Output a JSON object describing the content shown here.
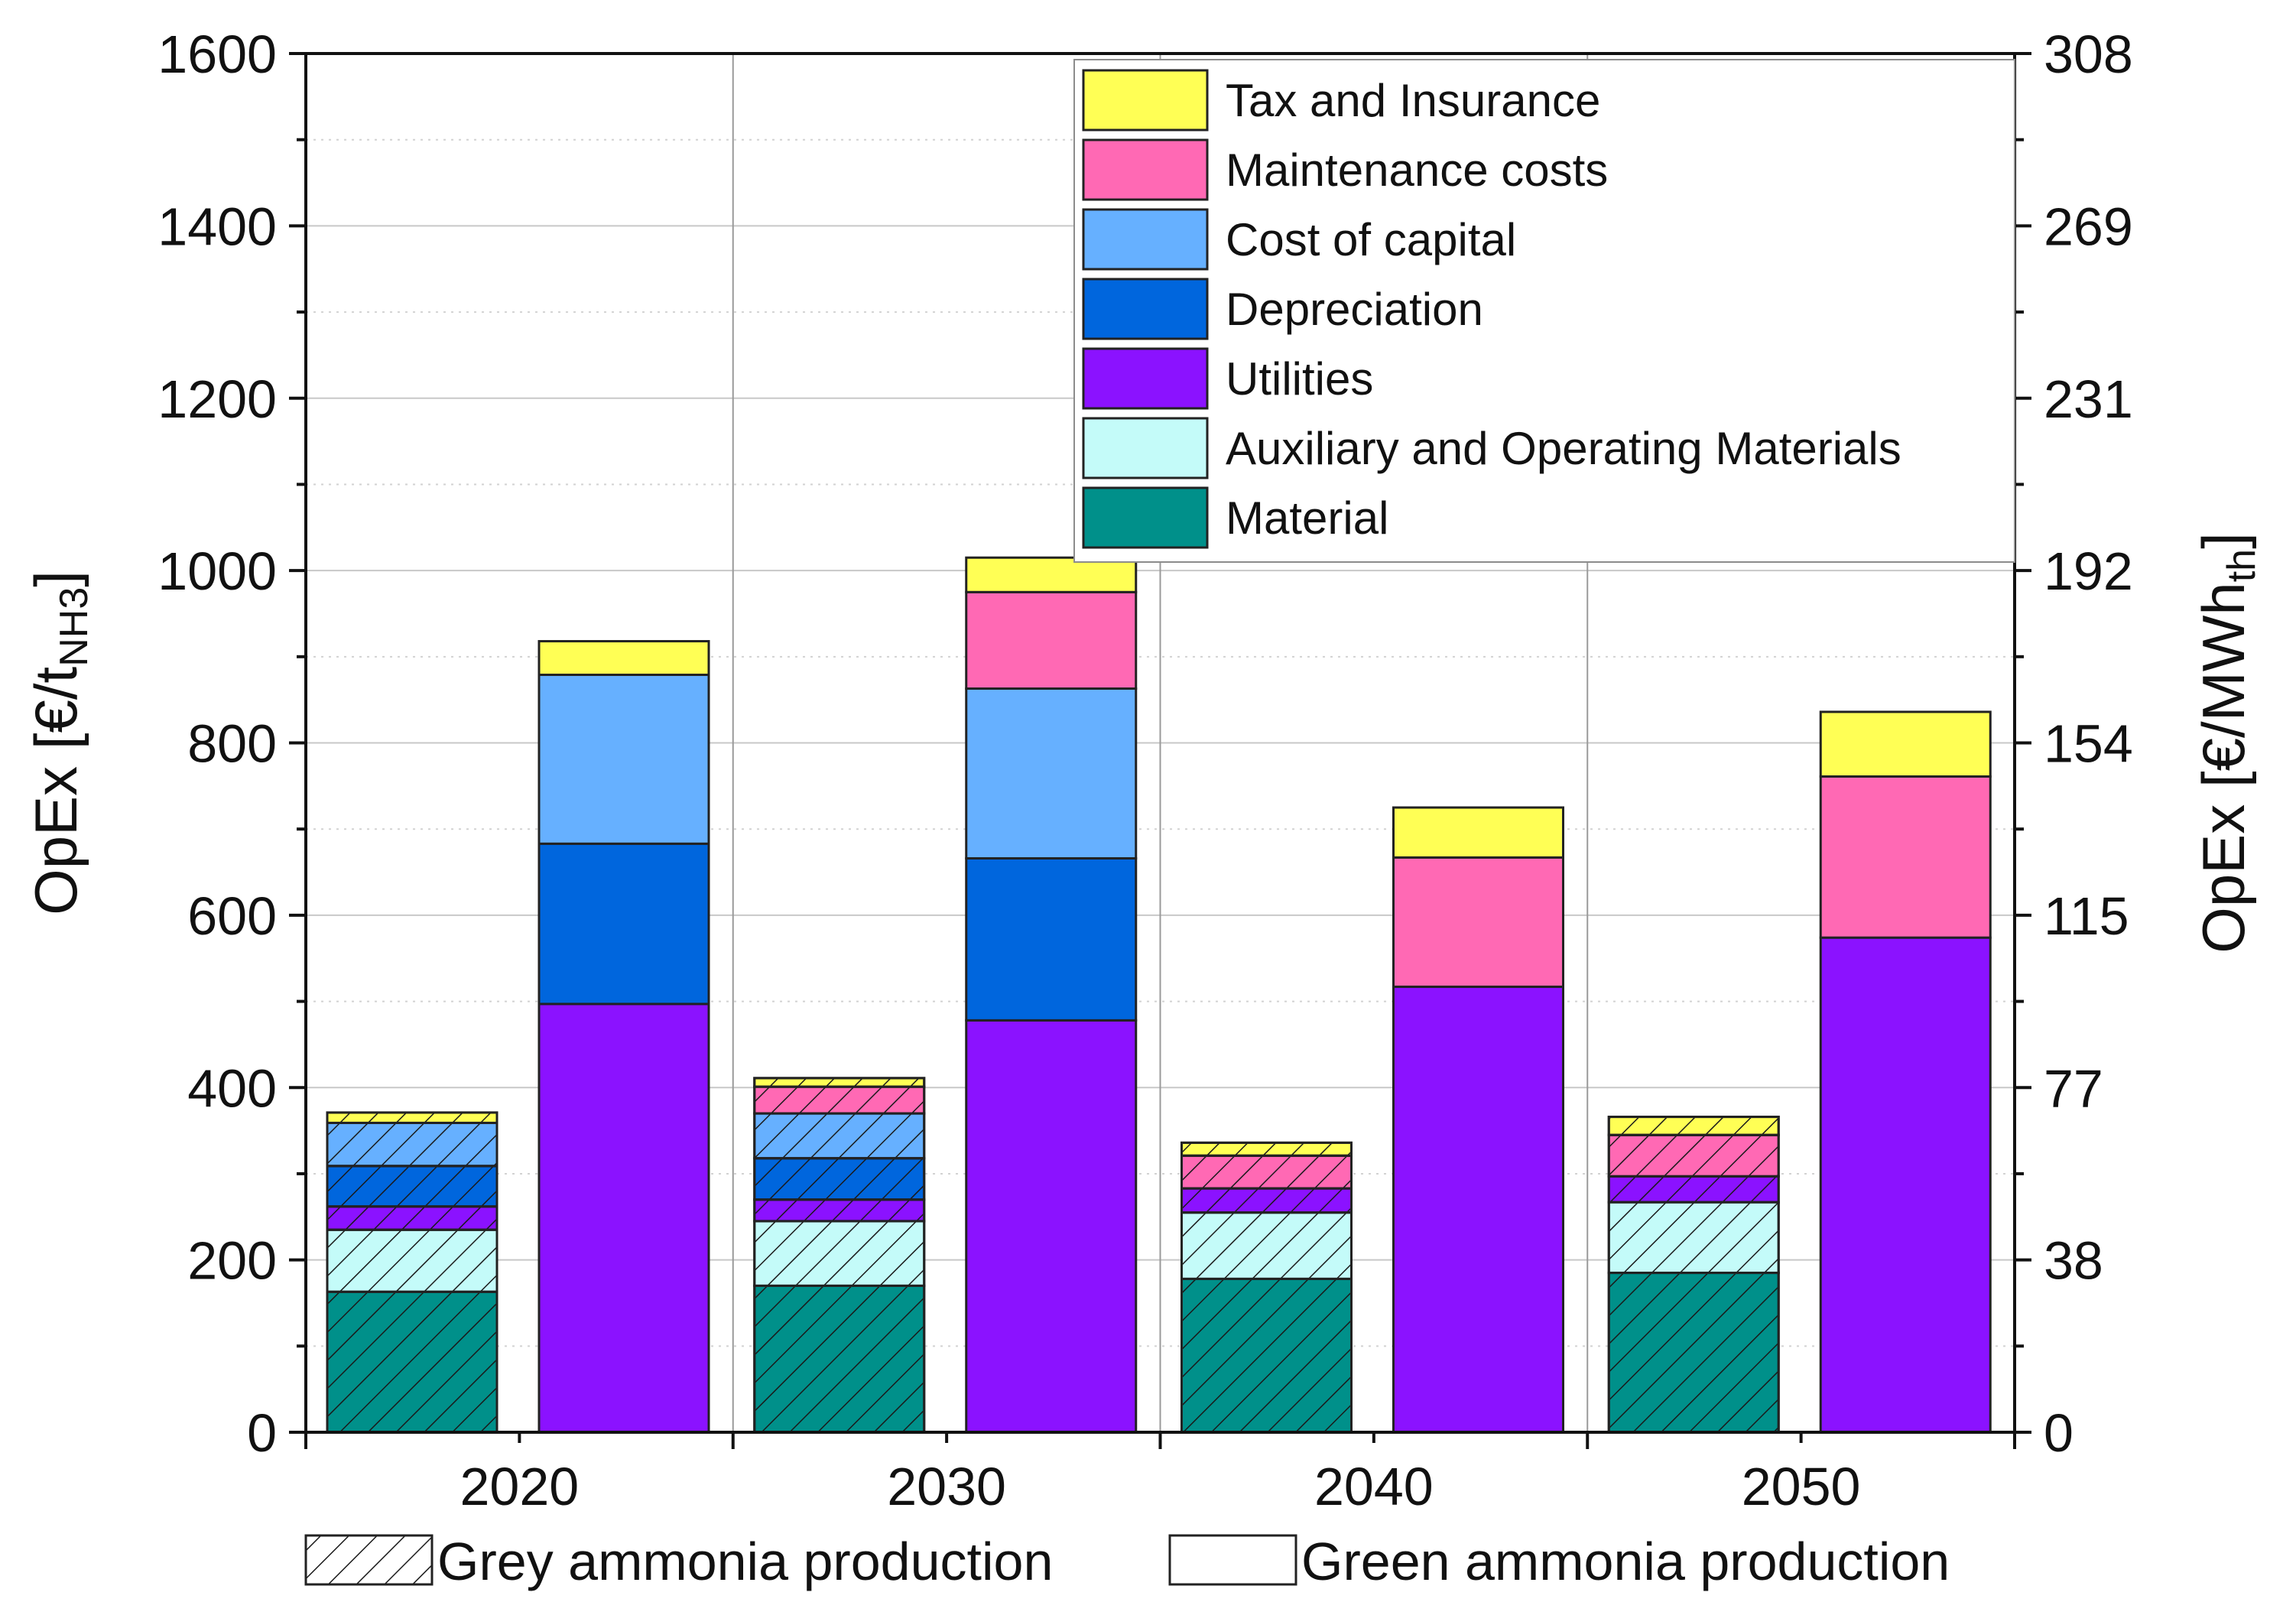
{
  "chart_data": {
    "type": "bar",
    "stacked": true,
    "categories": [
      "2020",
      "2030",
      "2040",
      "2050"
    ],
    "groups": [
      {
        "name": "Grey ammonia production",
        "pattern": "hatched"
      },
      {
        "name": "Green ammonia production",
        "pattern": "solid"
      }
    ],
    "series": [
      {
        "name": "Material",
        "color": "#00908a",
        "grey": [
          163,
          170,
          178,
          185
        ],
        "green": [
          0,
          0,
          0,
          0
        ]
      },
      {
        "name": "Auxiliary and Operating Materials",
        "color": "#c4fbf9",
        "grey": [
          72,
          75,
          77,
          82
        ],
        "green": [
          0,
          0,
          0,
          0
        ]
      },
      {
        "name": "Utilities",
        "color": "#8b12ff",
        "grey": [
          27,
          25,
          28,
          30
        ],
        "green": [
          497,
          478,
          517,
          574
        ]
      },
      {
        "name": "Depreciation",
        "color": "#0066dd",
        "grey": [
          47,
          48,
          0,
          0
        ],
        "green": [
          186,
          188,
          0,
          0
        ]
      },
      {
        "name": "Cost of capital",
        "color": "#66b0ff",
        "grey": [
          50,
          52,
          0,
          0
        ],
        "green": [
          196,
          197,
          0,
          0
        ]
      },
      {
        "name": "Maintenance costs",
        "color": "#ff69b4",
        "grey": [
          0,
          31,
          38,
          48
        ],
        "green": [
          0,
          112,
          150,
          187
        ]
      },
      {
        "name": "Tax and Insurance",
        "color": "#ffff55",
        "grey": [
          12,
          10,
          15,
          21
        ],
        "green": [
          39,
          40,
          58,
          75
        ]
      }
    ],
    "ylabel": "OpEx [€/t",
    "ylabel_sub": "NH3",
    "ylabel_end": "]",
    "ylim": [
      0,
      1600
    ],
    "yticks": [
      "0",
      "200",
      "400",
      "600",
      "800",
      "1000",
      "1200",
      "1400",
      "1600"
    ],
    "y2label": "OpEx [€/MWh",
    "y2label_sub": "th",
    "y2label_end": "]",
    "y2ticks": [
      "0",
      "38",
      "77",
      "115",
      "154",
      "192",
      "231",
      "269",
      "308"
    ],
    "legend_position": "top-right",
    "bottom_legend": [
      {
        "label": "Grey ammonia production",
        "pattern": "hatched"
      },
      {
        "label": "Green ammonia production",
        "pattern": "solid"
      }
    ],
    "grid": true
  }
}
